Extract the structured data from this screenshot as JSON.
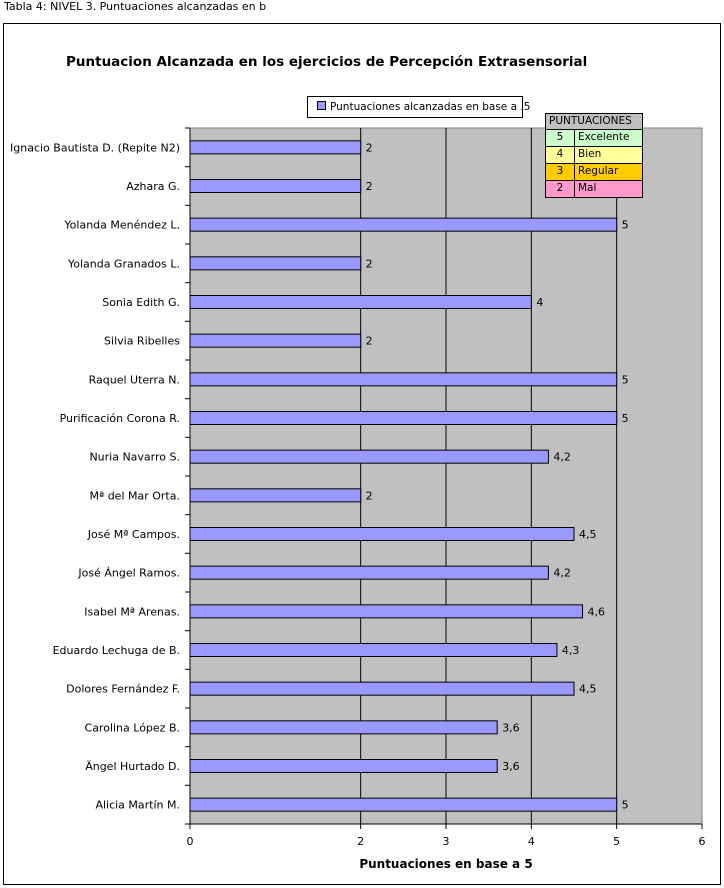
{
  "caption": "Tabla 4: NIVEL 3. Puntuaciones alcanzadas en base a 5",
  "chart_data": {
    "type": "bar",
    "orientation": "horizontal",
    "title": "Puntuacion Alcanzada en los ejercicios de Percepción Extrasensorial",
    "xlabel": "Puntuaciones en base a 5",
    "ylabel": "",
    "xlim": [
      0,
      6
    ],
    "xticks": [
      "0",
      "2",
      "3",
      "4",
      "5",
      "6"
    ],
    "xtick_values": [
      0,
      2,
      3,
      4,
      5,
      6
    ],
    "grid": true,
    "plot_background": "#c0c0c0",
    "legend_position": "top",
    "series": [
      {
        "name": "Puntuaciones alcanzadas en base a .5",
        "color": "#9999ff",
        "categories": [
          "Ignacio Bautista D. (Repite N2)",
          "Azhara G.",
          "Yolanda Menéndez L.",
          "Yolanda Granados L.",
          "Sonia Edith G.",
          "Silvia Ribelles",
          "Raquel Uterra N.",
          "Purificación Corona R.",
          "Nuria Navarro S.",
          "Mª del Mar Orta.",
          "José Mª Campos.",
          "José Ángel Ramos.",
          "Isabel Mª Arenas.",
          "Eduardo Lechuga de B.",
          "Dolores Fernández F.",
          "Carolina López B.",
          "Ängel Hurtado D.",
          "Alicia Martín M."
        ],
        "values": [
          2,
          2,
          5,
          2,
          4,
          2,
          5,
          5,
          4.2,
          2,
          4.5,
          4.2,
          4.6,
          4.3,
          4.5,
          3.6,
          3.6,
          5
        ],
        "labels": [
          "2",
          "2",
          "5",
          "2",
          "4",
          "2",
          "5",
          "5",
          "4,2",
          "2",
          "4,5",
          "4,2",
          "4,6",
          "4,3",
          "4,5",
          "3,6",
          "3,6",
          "5"
        ]
      }
    ]
  },
  "score_table": {
    "header": "PUNTUACIONES",
    "rows": [
      {
        "value": "5",
        "label": "Excelente",
        "color": "#ccffcc"
      },
      {
        "value": "4",
        "label": "Bien",
        "color": "#ffff99"
      },
      {
        "value": "3",
        "label": "Regular",
        "color": "#ffcc00"
      },
      {
        "value": "2",
        "label": "Mal",
        "color": "#ff99cc"
      }
    ]
  }
}
